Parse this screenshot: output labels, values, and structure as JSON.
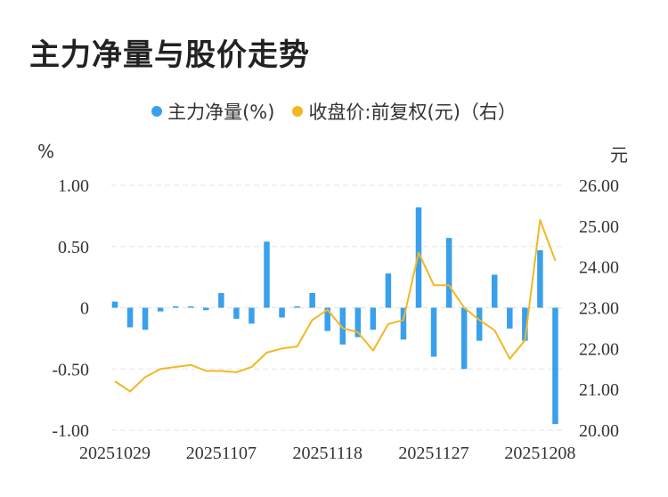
{
  "title": "主力净量与股价走势",
  "legend": {
    "bar_label": "主力净量(%)",
    "line_label": "收盘价:前复权(元)（右）"
  },
  "units": {
    "left": "%",
    "right": "元"
  },
  "colors": {
    "bar": "#3aa0ec",
    "line": "#f2b822",
    "grid": "#e3e3e3"
  },
  "chart_data": {
    "type": "bar+line",
    "x_tick_labels": [
      "20251029",
      "20251107",
      "20251118",
      "20251127",
      "20251208"
    ],
    "x_tick_index": [
      0,
      7,
      14,
      21,
      28
    ],
    "left_axis": {
      "ticks": [
        "1.00",
        "0.50",
        "0",
        "-0.50",
        "-1.00"
      ],
      "tick_values": [
        1,
        0.5,
        0,
        -0.5,
        -1
      ],
      "range": [
        -1,
        1
      ]
    },
    "right_axis": {
      "ticks": [
        "26.00",
        "25.00",
        "24.00",
        "23.00",
        "22.00",
        "21.00",
        "20.00"
      ],
      "tick_values": [
        26,
        25,
        24,
        23,
        22,
        21,
        20
      ],
      "range": [
        20,
        26
      ]
    },
    "series": [
      {
        "name": "主力净量(%)",
        "type": "bar",
        "axis": "left",
        "values": [
          0.05,
          -0.16,
          -0.18,
          -0.03,
          0.01,
          0.01,
          -0.02,
          0.12,
          -0.09,
          -0.13,
          0.54,
          -0.08,
          0.0,
          0.12,
          -0.19,
          -0.3,
          -0.24,
          -0.18,
          0.28,
          -0.26,
          0.82,
          -0.4,
          0.57,
          -0.5,
          -0.27,
          0.27,
          -0.17,
          -0.27,
          0.47,
          -0.95
        ]
      },
      {
        "name": "收盘价:前复权(元)（右）",
        "type": "line",
        "axis": "right",
        "values": [
          21.2,
          20.95,
          21.3,
          21.5,
          21.55,
          21.6,
          21.45,
          21.45,
          21.42,
          21.55,
          21.9,
          22.0,
          22.05,
          22.7,
          22.95,
          22.5,
          22.4,
          21.95,
          22.6,
          22.7,
          24.35,
          23.55,
          23.55,
          23.0,
          22.7,
          22.45,
          21.75,
          22.2,
          25.15,
          24.15
        ]
      }
    ],
    "grid": true,
    "legend_position": "top-center"
  }
}
